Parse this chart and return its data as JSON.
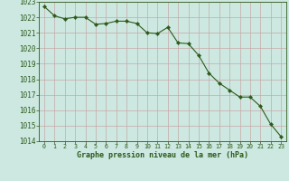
{
  "x": [
    0,
    1,
    2,
    3,
    4,
    5,
    6,
    7,
    8,
    9,
    10,
    11,
    12,
    13,
    14,
    15,
    16,
    17,
    18,
    19,
    20,
    21,
    22,
    23
  ],
  "y": [
    1022.7,
    1022.1,
    1021.9,
    1022.0,
    1022.0,
    1021.55,
    1021.6,
    1021.75,
    1021.75,
    1021.6,
    1021.0,
    1020.95,
    1021.35,
    1020.35,
    1020.3,
    1019.55,
    1018.4,
    1017.75,
    1017.3,
    1016.85,
    1016.85,
    1016.25,
    1015.1,
    1014.3
  ],
  "line_color": "#2d5a1b",
  "marker": "D",
  "marker_size": 2.2,
  "background_color": "#cce8e0",
  "grid_color": "#c0d8d0",
  "xlabel": "Graphe pression niveau de la mer (hPa)",
  "xlabel_color": "#2d5a1b",
  "tick_color": "#2d5a1b",
  "ylim": [
    1014,
    1023
  ],
  "xlim": [
    -0.5,
    23.5
  ],
  "yticks": [
    1014,
    1015,
    1016,
    1017,
    1018,
    1019,
    1020,
    1021,
    1022,
    1023
  ],
  "xticks": [
    0,
    1,
    2,
    3,
    4,
    5,
    6,
    7,
    8,
    9,
    10,
    11,
    12,
    13,
    14,
    15,
    16,
    17,
    18,
    19,
    20,
    21,
    22,
    23
  ],
  "ytick_fontsize": 5.5,
  "xtick_fontsize": 4.8,
  "xlabel_fontsize": 6.0
}
